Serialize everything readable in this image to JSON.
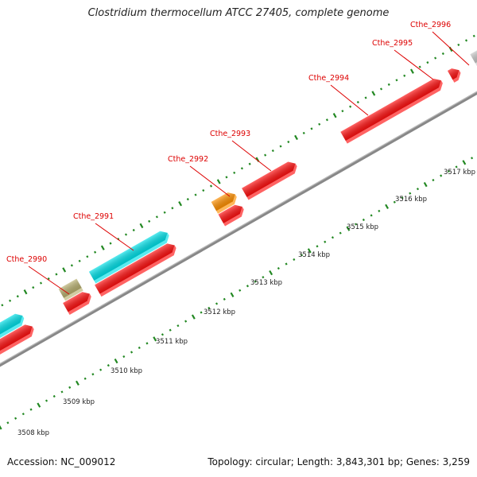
{
  "title": "Clostridium thermocellum ATCC 27405, complete genome",
  "footer": {
    "accession": "Accession: NC_009012",
    "topology": "Topology: circular; Length: 3,843,301 bp; Genes: 3,259"
  },
  "colors": {
    "gene_red": "#ff1010",
    "gene_cyan": "#00e0e8",
    "gene_olive": "#b8b070",
    "gene_orange": "#ff9000",
    "gene_gray": "#c8c8c8",
    "label_red": "#dd0000",
    "tick_green": "#228822",
    "backbone": "#888888"
  },
  "scale_labels": [
    "3508 kbp",
    "3509 kbp",
    "3510 kbp",
    "3511 kbp",
    "3512 kbp",
    "3513 kbp",
    "3514 kbp",
    "3515 kbp",
    "3516 kbp",
    "3517 kbp"
  ],
  "gene_labels": [
    "Cthe_2990",
    "Cthe_2991",
    "Cthe_2992",
    "Cthe_2993",
    "Cthe_2994",
    "Cthe_2995",
    "Cthe_2996"
  ]
}
